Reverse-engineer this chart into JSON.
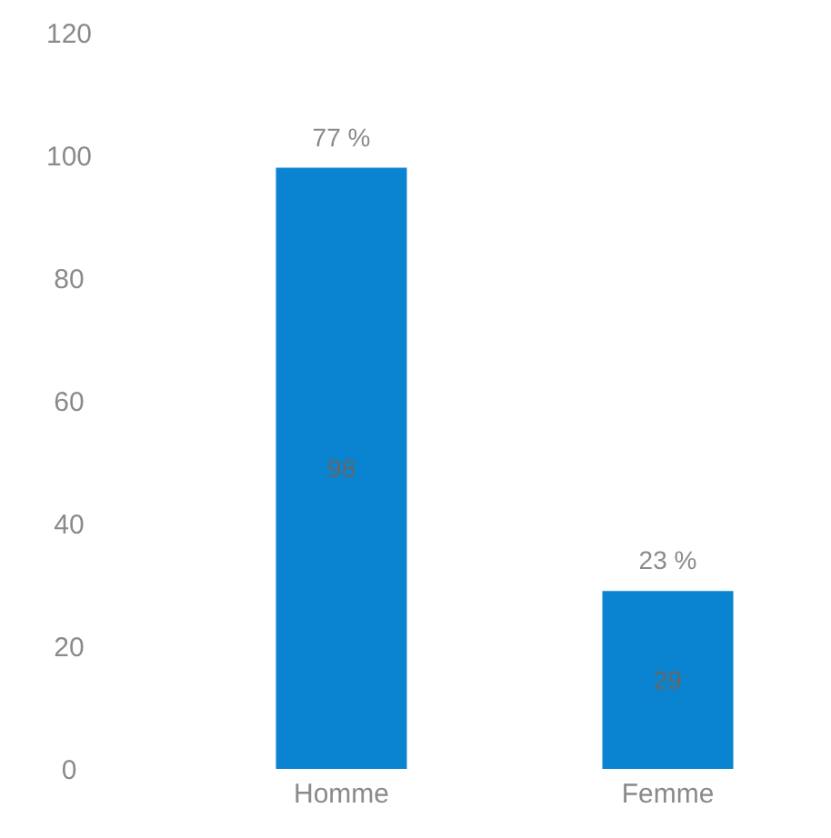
{
  "chart_data": {
    "type": "bar",
    "categories": [
      "Homme",
      "Femme"
    ],
    "values": [
      98,
      29
    ],
    "color": "#0a84d0",
    "data_labels": true,
    "annotations": [
      {
        "text": "77 %",
        "x": "Homme",
        "y": 98
      },
      {
        "text": "23 %",
        "x": "Femme",
        "y": 29
      }
    ],
    "ylim": [
      0,
      120
    ],
    "yticks": [
      0,
      20,
      40,
      60,
      80,
      100,
      120
    ],
    "grid": false,
    "legend": false
  }
}
